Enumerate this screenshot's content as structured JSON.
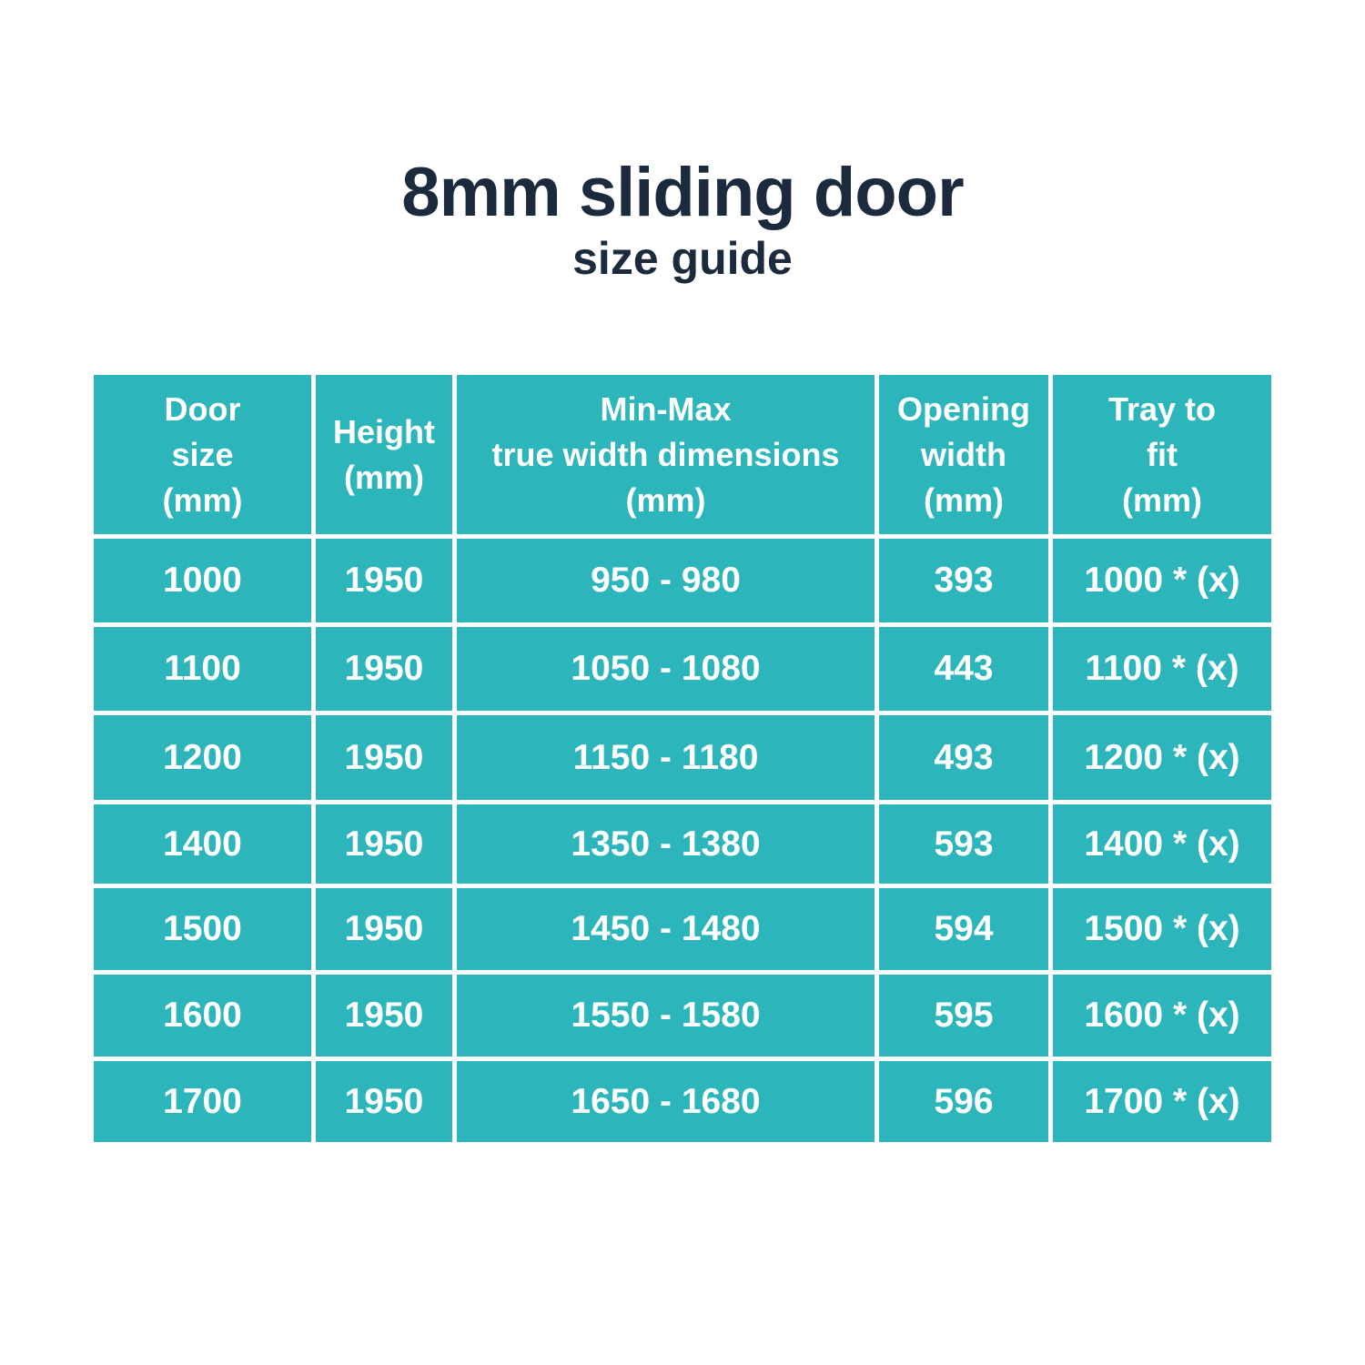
{
  "title": "8mm sliding door",
  "subtitle": "size guide",
  "colors": {
    "cell_bg": "#2db5bc",
    "title": "#1c2a3e",
    "text": "#ffffff"
  },
  "table": {
    "headers": [
      "Door\nsize\n(mm)",
      "Height\n(mm)",
      "Min-Max\ntrue width dimensions\n(mm)",
      "Opening\nwidth\n(mm)",
      "Tray to\nfit\n(mm)"
    ],
    "rows": [
      [
        "1000",
        "1950",
        "950 - 980",
        "393",
        "1000 * (x)"
      ],
      [
        "1100",
        "1950",
        "1050 - 1080",
        "443",
        "1100 * (x)"
      ],
      [
        "1200",
        "1950",
        "1150 - 1180",
        "493",
        "1200 * (x)"
      ],
      [
        "1400",
        "1950",
        "1350 - 1380",
        "593",
        "1400 * (x)"
      ],
      [
        "1500",
        "1950",
        "1450 - 1480",
        "594",
        "1500 * (x)"
      ],
      [
        "1600",
        "1950",
        "1550 - 1580",
        "595",
        "1600 * (x)"
      ],
      [
        "1700",
        "1950",
        "1650 - 1680",
        "596",
        "1700 * (x)"
      ]
    ]
  }
}
